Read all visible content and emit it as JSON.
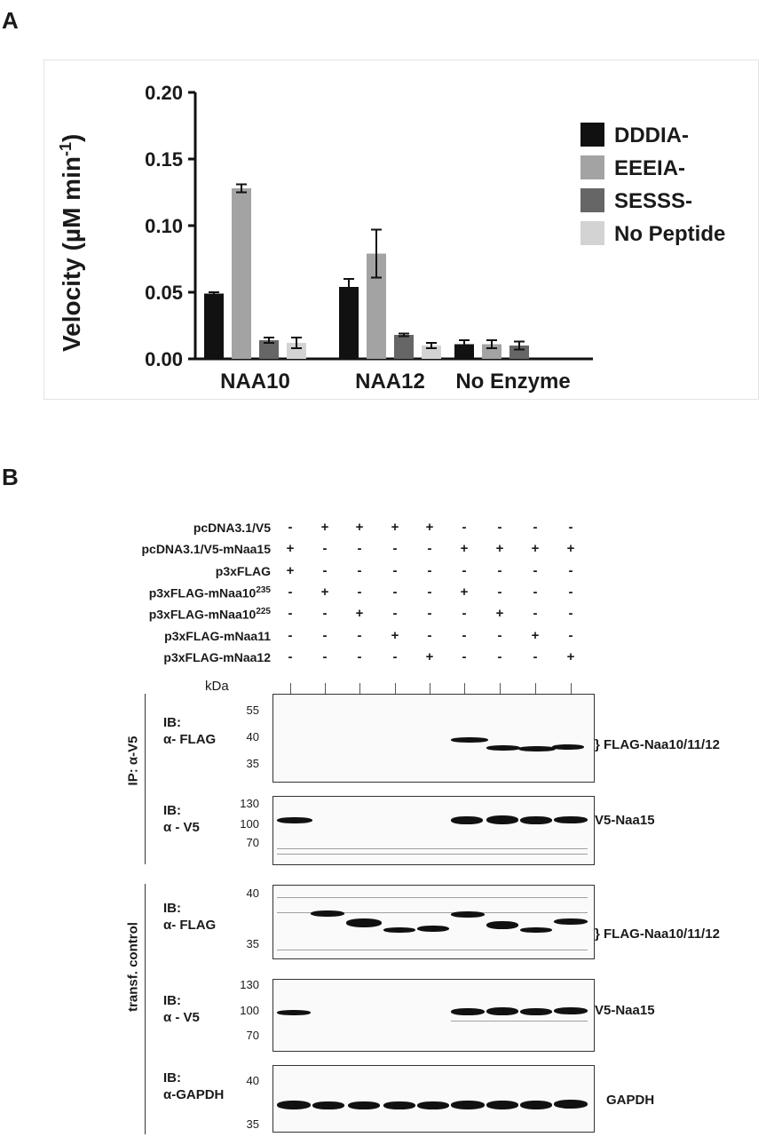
{
  "panel_a": {
    "letter": "A"
  },
  "panel_b": {
    "letter": "B"
  },
  "chart_data": {
    "type": "bar",
    "categories": [
      "NAA10",
      "NAA12",
      "No Enzyme"
    ],
    "ylabel": "Velocity (µM min⁻¹)",
    "ylabel_main": "Velocity (µM min",
    "ylabel_sup": "-1",
    "ylabel_close": ")",
    "ylim": [
      0,
      0.2
    ],
    "yticks": [
      "0.00",
      "0.05",
      "0.10",
      "0.15",
      "0.20"
    ],
    "legend_position": "right",
    "series": [
      {
        "name": "DDDIA-",
        "color": "#111111",
        "values": [
          0.049,
          0.054,
          0.011
        ],
        "errors": [
          0.001,
          0.006,
          0.003
        ]
      },
      {
        "name": "EEEIA-",
        "color": "#a3a3a3",
        "values": [
          0.128,
          0.079,
          0.011
        ],
        "errors": [
          0.003,
          0.018,
          0.003
        ]
      },
      {
        "name": "SESSS-",
        "color": "#666666",
        "values": [
          0.014,
          0.018,
          0.01
        ],
        "errors": [
          0.002,
          0.001,
          0.003
        ]
      },
      {
        "name": "No Peptide",
        "color": "#d3d3d3",
        "values": [
          0.012,
          0.01,
          null
        ],
        "errors": [
          0.004,
          0.002,
          null
        ]
      }
    ]
  },
  "conditions": {
    "rows": [
      {
        "label": "pcDNA3.1/V5",
        "signs": [
          "-",
          "+",
          "+",
          "+",
          "+",
          "-",
          "-",
          "-",
          "-"
        ]
      },
      {
        "label": "pcDNA3.1/V5-mNaa15",
        "signs": [
          "+",
          "-",
          "-",
          "-",
          "-",
          "+",
          "+",
          "+",
          "+"
        ]
      },
      {
        "label": "p3xFLAG",
        "signs": [
          "+",
          "-",
          "-",
          "-",
          "-",
          "-",
          "-",
          "-",
          "-"
        ]
      },
      {
        "label": "p3xFLAG-mNaa10",
        "sup": "235",
        "signs": [
          "-",
          "+",
          "-",
          "-",
          "-",
          "+",
          "-",
          "-",
          "-"
        ]
      },
      {
        "label": "p3xFLAG-mNaa10",
        "sup": "225",
        "signs": [
          "-",
          "-",
          "+",
          "-",
          "-",
          "-",
          "+",
          "-",
          "-"
        ]
      },
      {
        "label": "p3xFLAG-mNaa11",
        "signs": [
          "-",
          "-",
          "-",
          "+",
          "-",
          "-",
          "-",
          "+",
          "-"
        ]
      },
      {
        "label": "p3xFLAG-mNaa12",
        "signs": [
          "-",
          "-",
          "-",
          "-",
          "+",
          "-",
          "-",
          "-",
          "+"
        ]
      }
    ],
    "kda_label": "kDa"
  },
  "blots": {
    "ip_group_label": "IP: α-V5",
    "transf_group_label": "transf. control",
    "panels": [
      {
        "ib_line1": "IB:",
        "ib_line2": "α- FLAG",
        "markers": [
          "55",
          "40",
          "35"
        ],
        "right_label": "FLAG-Naa10/11/12"
      },
      {
        "ib_line1": "IB:",
        "ib_line2": "α - V5",
        "markers": [
          "130",
          "100",
          "70"
        ],
        "right_label": "V5-Naa15"
      },
      {
        "ib_line1": "IB:",
        "ib_line2": "α- FLAG",
        "markers": [
          "40",
          "35"
        ],
        "right_label": "FLAG-Naa10/11/12"
      },
      {
        "ib_line1": "IB:",
        "ib_line2": "α - V5",
        "markers": [
          "130",
          "100",
          "70"
        ],
        "right_label": "V5-Naa15"
      },
      {
        "ib_line1": "IB:",
        "ib_line2": "α-GAPDH",
        "markers": [
          "40",
          "35"
        ],
        "right_label": "GAPDH"
      }
    ]
  }
}
